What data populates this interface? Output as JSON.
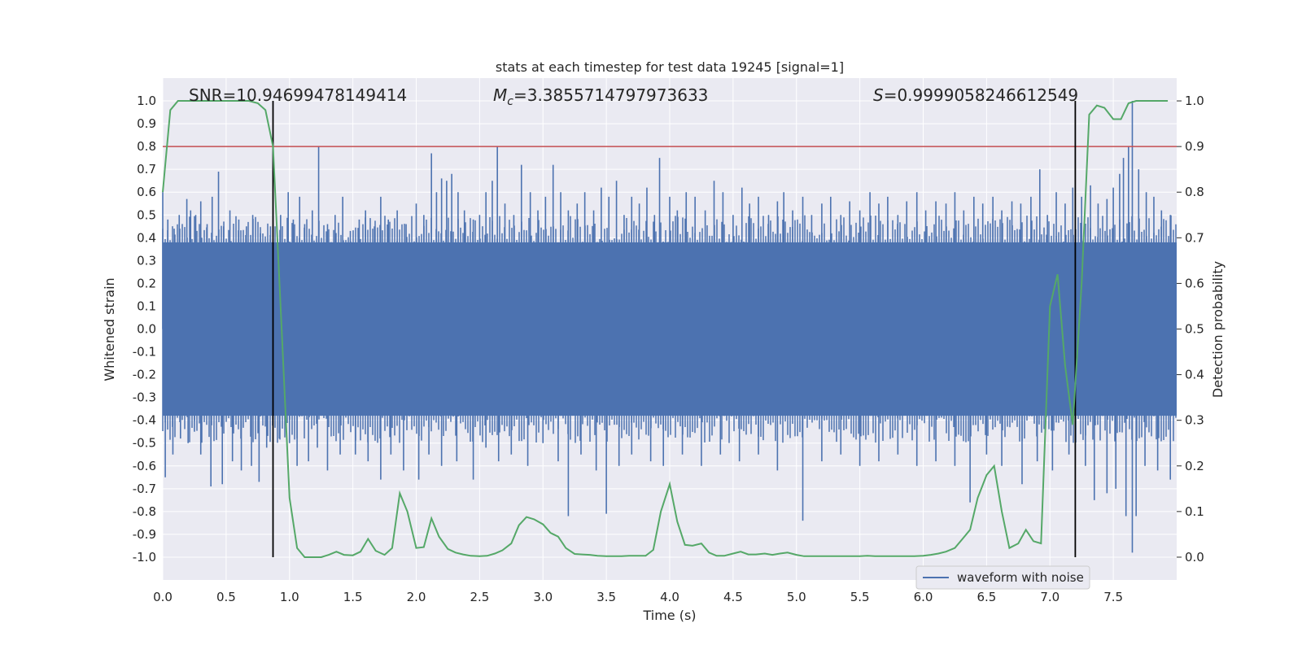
{
  "chart_data": {
    "type": "line",
    "title": "stats at each timestep for test data 19245 [signal=1]",
    "xlabel": "Time (s)",
    "ylabel": "Whitened strain",
    "y2label": "Detection probability",
    "xlim": [
      0.0,
      8.0
    ],
    "ylim": [
      -1.1,
      1.1
    ],
    "y2lim": [
      -0.05,
      1.05
    ],
    "x_ticks": [
      "0.0",
      "0.5",
      "1.0",
      "1.5",
      "2.0",
      "2.5",
      "3.0",
      "3.5",
      "4.0",
      "4.5",
      "5.0",
      "5.5",
      "6.0",
      "6.5",
      "7.0",
      "7.5"
    ],
    "y_ticks": [
      "1.0",
      "0.9",
      "0.8",
      "0.7",
      "0.6",
      "0.5",
      "0.4",
      "0.3",
      "0.2",
      "0.1",
      "0.0",
      "-0.1",
      "-0.2",
      "-0.3",
      "-0.4",
      "-0.5",
      "-0.6",
      "-0.7",
      "-0.8",
      "-0.9",
      "-1.0"
    ],
    "y2_ticks": [
      "1.0",
      "0.9",
      "0.8",
      "0.7",
      "0.6",
      "0.5",
      "0.4",
      "0.3",
      "0.2",
      "0.1",
      "0.0"
    ],
    "grid": true,
    "legend_position": "bottom-right",
    "annotations": {
      "snr": "SNR=10.94699478149414",
      "mc_symbol": "M",
      "mc_subscript": "c",
      "mc_value": "=3.3855714797973633",
      "s_symbol": "S",
      "s_value": "=0.9999058246612549"
    },
    "threshold_line": {
      "y2": 0.9,
      "color": "#c44e52"
    },
    "vertical_lines": [
      0.87,
      7.2
    ],
    "series": [
      {
        "name": "waveform with noise",
        "color": "#4c72b0",
        "envelope_band": [
          -0.38,
          0.38
        ],
        "spikes_up": [
          [
            0.0,
            0.6
          ],
          [
            0.04,
            0.48
          ],
          [
            0.09,
            0.44
          ],
          [
            0.13,
            0.5
          ],
          [
            0.19,
            0.57
          ],
          [
            0.22,
            0.52
          ],
          [
            0.26,
            0.5
          ],
          [
            0.3,
            0.56
          ],
          [
            0.35,
            0.46
          ],
          [
            0.39,
            0.58
          ],
          [
            0.44,
            0.69
          ],
          [
            0.48,
            0.45
          ],
          [
            0.53,
            0.52
          ],
          [
            0.6,
            0.48
          ],
          [
            0.66,
            0.45
          ],
          [
            0.71,
            0.5
          ],
          [
            0.77,
            0.42
          ],
          [
            0.85,
            0.45
          ],
          [
            0.93,
            0.5
          ],
          [
            0.99,
            0.6
          ],
          [
            1.03,
            0.48
          ],
          [
            1.08,
            0.58
          ],
          [
            1.12,
            0.46
          ],
          [
            1.18,
            0.52
          ],
          [
            1.23,
            0.8
          ],
          [
            1.3,
            0.46
          ],
          [
            1.36,
            0.5
          ],
          [
            1.42,
            0.58
          ],
          [
            1.48,
            0.43
          ],
          [
            1.55,
            0.48
          ],
          [
            1.6,
            0.52
          ],
          [
            1.67,
            0.45
          ],
          [
            1.72,
            0.58
          ],
          [
            1.78,
            0.48
          ],
          [
            1.85,
            0.52
          ],
          [
            1.92,
            0.46
          ],
          [
            2.0,
            0.55
          ],
          [
            2.06,
            0.5
          ],
          [
            2.12,
            0.77
          ],
          [
            2.16,
            0.6
          ],
          [
            2.2,
            0.66
          ],
          [
            2.24,
            0.65
          ],
          [
            2.28,
            0.68
          ],
          [
            2.33,
            0.6
          ],
          [
            2.38,
            0.52
          ],
          [
            2.45,
            0.48
          ],
          [
            2.5,
            0.5
          ],
          [
            2.55,
            0.6
          ],
          [
            2.6,
            0.65
          ],
          [
            2.64,
            0.8
          ],
          [
            2.7,
            0.55
          ],
          [
            2.77,
            0.5
          ],
          [
            2.83,
            0.72
          ],
          [
            2.9,
            0.6
          ],
          [
            2.96,
            0.52
          ],
          [
            3.02,
            0.58
          ],
          [
            3.08,
            0.72
          ],
          [
            3.14,
            0.6
          ],
          [
            3.2,
            0.52
          ],
          [
            3.27,
            0.55
          ],
          [
            3.33,
            0.6
          ],
          [
            3.4,
            0.52
          ],
          [
            3.46,
            0.62
          ],
          [
            3.52,
            0.58
          ],
          [
            3.58,
            0.65
          ],
          [
            3.64,
            0.5
          ],
          [
            3.7,
            0.58
          ],
          [
            3.76,
            0.55
          ],
          [
            3.82,
            0.62
          ],
          [
            3.88,
            0.5
          ],
          [
            3.92,
            0.75
          ],
          [
            4.0,
            0.58
          ],
          [
            4.06,
            0.52
          ],
          [
            4.13,
            0.6
          ],
          [
            4.2,
            0.58
          ],
          [
            4.28,
            0.52
          ],
          [
            4.35,
            0.65
          ],
          [
            4.42,
            0.6
          ],
          [
            4.5,
            0.5
          ],
          [
            4.57,
            0.62
          ],
          [
            4.63,
            0.55
          ],
          [
            4.7,
            0.58
          ],
          [
            4.78,
            0.5
          ],
          [
            4.85,
            0.56
          ],
          [
            4.9,
            0.6
          ],
          [
            4.97,
            0.52
          ],
          [
            5.05,
            0.58
          ],
          [
            5.12,
            0.5
          ],
          [
            5.2,
            0.55
          ],
          [
            5.27,
            0.58
          ],
          [
            5.35,
            0.5
          ],
          [
            5.42,
            0.56
          ],
          [
            5.5,
            0.52
          ],
          [
            5.58,
            0.6
          ],
          [
            5.65,
            0.55
          ],
          [
            5.72,
            0.58
          ],
          [
            5.8,
            0.5
          ],
          [
            5.87,
            0.56
          ],
          [
            5.95,
            0.6
          ],
          [
            6.02,
            0.52
          ],
          [
            6.1,
            0.56
          ],
          [
            6.18,
            0.55
          ],
          [
            6.25,
            0.6
          ],
          [
            6.32,
            0.52
          ],
          [
            6.4,
            0.58
          ],
          [
            6.47,
            0.55
          ],
          [
            6.55,
            0.58
          ],
          [
            6.62,
            0.52
          ],
          [
            6.7,
            0.56
          ],
          [
            6.77,
            0.55
          ],
          [
            6.85,
            0.58
          ],
          [
            6.92,
            0.7
          ],
          [
            6.98,
            0.5
          ],
          [
            7.05,
            0.6
          ],
          [
            7.12,
            0.55
          ],
          [
            7.18,
            0.62
          ],
          [
            7.25,
            0.58
          ],
          [
            7.32,
            0.63
          ],
          [
            7.38,
            0.55
          ],
          [
            7.45,
            0.57
          ],
          [
            7.5,
            0.62
          ],
          [
            7.55,
            0.68
          ],
          [
            7.58,
            0.75
          ],
          [
            7.62,
            0.8
          ],
          [
            7.65,
            1.0
          ],
          [
            7.7,
            0.7
          ],
          [
            7.76,
            0.6
          ],
          [
            7.82,
            0.58
          ],
          [
            7.88,
            0.52
          ],
          [
            7.95,
            0.5
          ]
        ],
        "spikes_down": [
          [
            0.02,
            -0.65
          ],
          [
            0.08,
            -0.55
          ],
          [
            0.14,
            -0.48
          ],
          [
            0.2,
            -0.5
          ],
          [
            0.25,
            -0.45
          ],
          [
            0.3,
            -0.55
          ],
          [
            0.38,
            -0.69
          ],
          [
            0.47,
            -0.68
          ],
          [
            0.55,
            -0.58
          ],
          [
            0.62,
            -0.62
          ],
          [
            0.7,
            -0.6
          ],
          [
            0.76,
            -0.67
          ],
          [
            0.82,
            -0.52
          ],
          [
            0.92,
            -0.48
          ],
          [
            1.0,
            -0.5
          ],
          [
            1.06,
            -0.6
          ],
          [
            1.15,
            -0.58
          ],
          [
            1.22,
            -0.52
          ],
          [
            1.3,
            -0.62
          ],
          [
            1.4,
            -0.55
          ],
          [
            1.52,
            -0.55
          ],
          [
            1.62,
            -0.58
          ],
          [
            1.72,
            -0.66
          ],
          [
            1.8,
            -0.55
          ],
          [
            1.9,
            -0.62
          ],
          [
            2.02,
            -0.66
          ],
          [
            2.1,
            -0.55
          ],
          [
            2.2,
            -0.6
          ],
          [
            2.32,
            -0.58
          ],
          [
            2.45,
            -0.66
          ],
          [
            2.55,
            -0.52
          ],
          [
            2.65,
            -0.58
          ],
          [
            2.75,
            -0.55
          ],
          [
            2.88,
            -0.6
          ],
          [
            3.0,
            -0.5
          ],
          [
            3.12,
            -0.58
          ],
          [
            3.2,
            -0.82
          ],
          [
            3.3,
            -0.55
          ],
          [
            3.42,
            -0.62
          ],
          [
            3.5,
            -0.81
          ],
          [
            3.6,
            -0.6
          ],
          [
            3.7,
            -0.55
          ],
          [
            3.85,
            -0.58
          ],
          [
            3.95,
            -0.6
          ],
          [
            4.1,
            -0.55
          ],
          [
            4.25,
            -0.6
          ],
          [
            4.4,
            -0.55
          ],
          [
            4.55,
            -0.58
          ],
          [
            4.7,
            -0.55
          ],
          [
            4.85,
            -0.62
          ],
          [
            5.05,
            -0.84
          ],
          [
            5.2,
            -0.58
          ],
          [
            5.35,
            -0.55
          ],
          [
            5.5,
            -0.6
          ],
          [
            5.65,
            -0.58
          ],
          [
            5.8,
            -0.55
          ],
          [
            5.95,
            -0.6
          ],
          [
            6.1,
            -0.58
          ],
          [
            6.25,
            -0.6
          ],
          [
            6.37,
            -0.76
          ],
          [
            6.5,
            -0.55
          ],
          [
            6.62,
            -0.6
          ],
          [
            6.78,
            -0.68
          ],
          [
            6.9,
            -0.58
          ],
          [
            7.02,
            -0.62
          ],
          [
            7.15,
            -0.55
          ],
          [
            7.28,
            -0.6
          ],
          [
            7.35,
            -0.75
          ],
          [
            7.45,
            -0.72
          ],
          [
            7.52,
            -0.7
          ],
          [
            7.6,
            -0.82
          ],
          [
            7.65,
            -0.98
          ],
          [
            7.68,
            -0.82
          ],
          [
            7.75,
            -0.6
          ],
          [
            7.85,
            -0.62
          ],
          [
            7.95,
            -0.66
          ]
        ]
      },
      {
        "name": "Detection probability",
        "axis": "right",
        "color": "#55a868",
        "x": [
          0.0,
          0.06,
          0.12,
          0.18,
          0.25,
          0.31,
          0.37,
          0.43,
          0.5,
          0.56,
          0.62,
          0.68,
          0.75,
          0.81,
          0.87,
          0.93,
          1.0,
          1.06,
          1.12,
          1.18,
          1.25,
          1.31,
          1.37,
          1.43,
          1.5,
          1.56,
          1.62,
          1.68,
          1.75,
          1.81,
          1.87,
          1.93,
          2.0,
          2.06,
          2.12,
          2.18,
          2.25,
          2.31,
          2.37,
          2.43,
          2.5,
          2.56,
          2.62,
          2.68,
          2.75,
          2.81,
          2.87,
          2.93,
          3.0,
          3.06,
          3.12,
          3.18,
          3.25,
          3.31,
          3.37,
          3.43,
          3.5,
          3.56,
          3.62,
          3.68,
          3.75,
          3.81,
          3.87,
          3.93,
          4.0,
          4.06,
          4.12,
          4.18,
          4.25,
          4.31,
          4.37,
          4.43,
          4.5,
          4.56,
          4.62,
          4.68,
          4.75,
          4.81,
          4.87,
          4.93,
          5.0,
          5.06,
          5.12,
          5.18,
          5.25,
          5.31,
          5.37,
          5.43,
          5.5,
          5.56,
          5.62,
          5.68,
          5.75,
          5.81,
          5.87,
          5.93,
          6.0,
          6.06,
          6.12,
          6.18,
          6.25,
          6.31,
          6.37,
          6.43,
          6.5,
          6.56,
          6.62,
          6.68,
          6.75,
          6.81,
          6.87,
          6.93,
          7.0,
          7.06,
          7.12,
          7.18,
          7.25,
          7.31,
          7.37,
          7.43,
          7.5,
          7.56,
          7.62,
          7.68,
          7.75,
          7.81,
          7.87,
          7.93
        ],
        "y": [
          0.8,
          0.98,
          1.0,
          1.0,
          1.0,
          1.0,
          1.0,
          1.0,
          1.0,
          1.0,
          1.0,
          1.0,
          0.995,
          0.98,
          0.9,
          0.55,
          0.13,
          0.02,
          0.0,
          0.0,
          0.0,
          0.005,
          0.012,
          0.005,
          0.004,
          0.012,
          0.04,
          0.014,
          0.005,
          0.02,
          0.14,
          0.1,
          0.02,
          0.022,
          0.085,
          0.045,
          0.018,
          0.01,
          0.006,
          0.003,
          0.002,
          0.003,
          0.008,
          0.015,
          0.03,
          0.07,
          0.088,
          0.083,
          0.072,
          0.053,
          0.045,
          0.02,
          0.007,
          0.006,
          0.005,
          0.003,
          0.002,
          0.002,
          0.002,
          0.003,
          0.003,
          0.003,
          0.016,
          0.1,
          0.16,
          0.078,
          0.027,
          0.025,
          0.03,
          0.01,
          0.003,
          0.003,
          0.008,
          0.012,
          0.006,
          0.006,
          0.008,
          0.005,
          0.008,
          0.01,
          0.005,
          0.002,
          0.002,
          0.002,
          0.002,
          0.002,
          0.002,
          0.002,
          0.002,
          0.003,
          0.002,
          0.002,
          0.002,
          0.002,
          0.002,
          0.002,
          0.003,
          0.005,
          0.008,
          0.012,
          0.02,
          0.04,
          0.06,
          0.13,
          0.18,
          0.2,
          0.1,
          0.02,
          0.03,
          0.06,
          0.035,
          0.03,
          0.55,
          0.62,
          0.42,
          0.29,
          0.6,
          0.97,
          0.99,
          0.985,
          0.96,
          0.96,
          0.995,
          1.0,
          1.0,
          1.0,
          1.0,
          1.0
        ]
      }
    ]
  }
}
